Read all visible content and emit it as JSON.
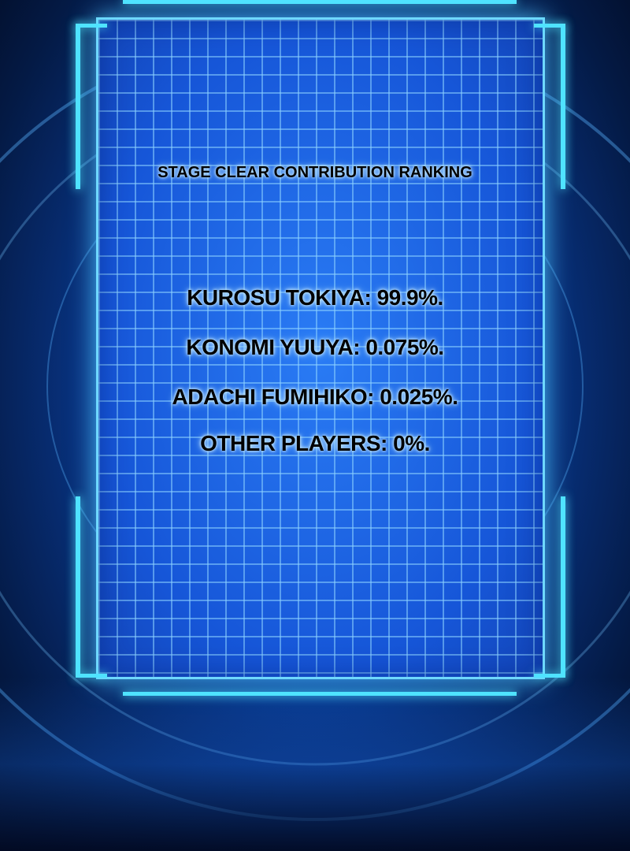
{
  "window": {
    "title": "STAGE CLEAR CONTRIBUTION RANKING",
    "rankings": [
      {
        "name": "KUROSU TOKIYA",
        "percent": "99.9%",
        "text": "KUROSU TOKIYA: 99.9%."
      },
      {
        "name": "KONOMI YUUYA",
        "percent": "0.075%",
        "text": "KONOMI YUUYA: 0.075%."
      },
      {
        "name": "ADACHI FUMIHIKO",
        "percent": "0.025%",
        "text": "ADACHI FUMIHIKO: 0.025%."
      },
      {
        "name": "OTHER PLAYERS",
        "percent": "0%",
        "text": "OTHER PLAYERS: 0%."
      }
    ]
  },
  "colors": {
    "panel": "#1d6cf0",
    "frame_glow": "#4fe3ff",
    "text": "#000000"
  }
}
